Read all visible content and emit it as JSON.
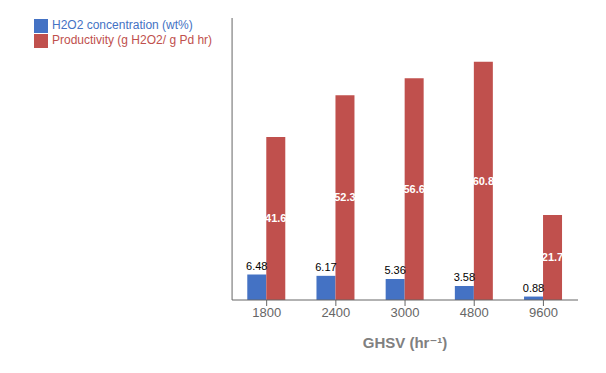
{
  "chart_data": {
    "type": "bar",
    "categories": [
      "1800",
      "2400",
      "3000",
      "4800",
      "9600"
    ],
    "series": [
      {
        "name": "H2O2 concentration (wt%)",
        "color": "#4472C4",
        "values": [
          6.48,
          6.17,
          5.36,
          3.58,
          0.88
        ]
      },
      {
        "name": "Productivity (g H2O2/ g Pd hr)",
        "color": "#C0504D",
        "values": [
          41.6,
          52.3,
          56.6,
          60.8,
          21.7
        ]
      }
    ],
    "xlabel": "GHSV (hr⁻¹)",
    "ylim": [
      0,
      72
    ],
    "data_labels": true,
    "tick_labels": "x",
    "legend": "upper left"
  }
}
